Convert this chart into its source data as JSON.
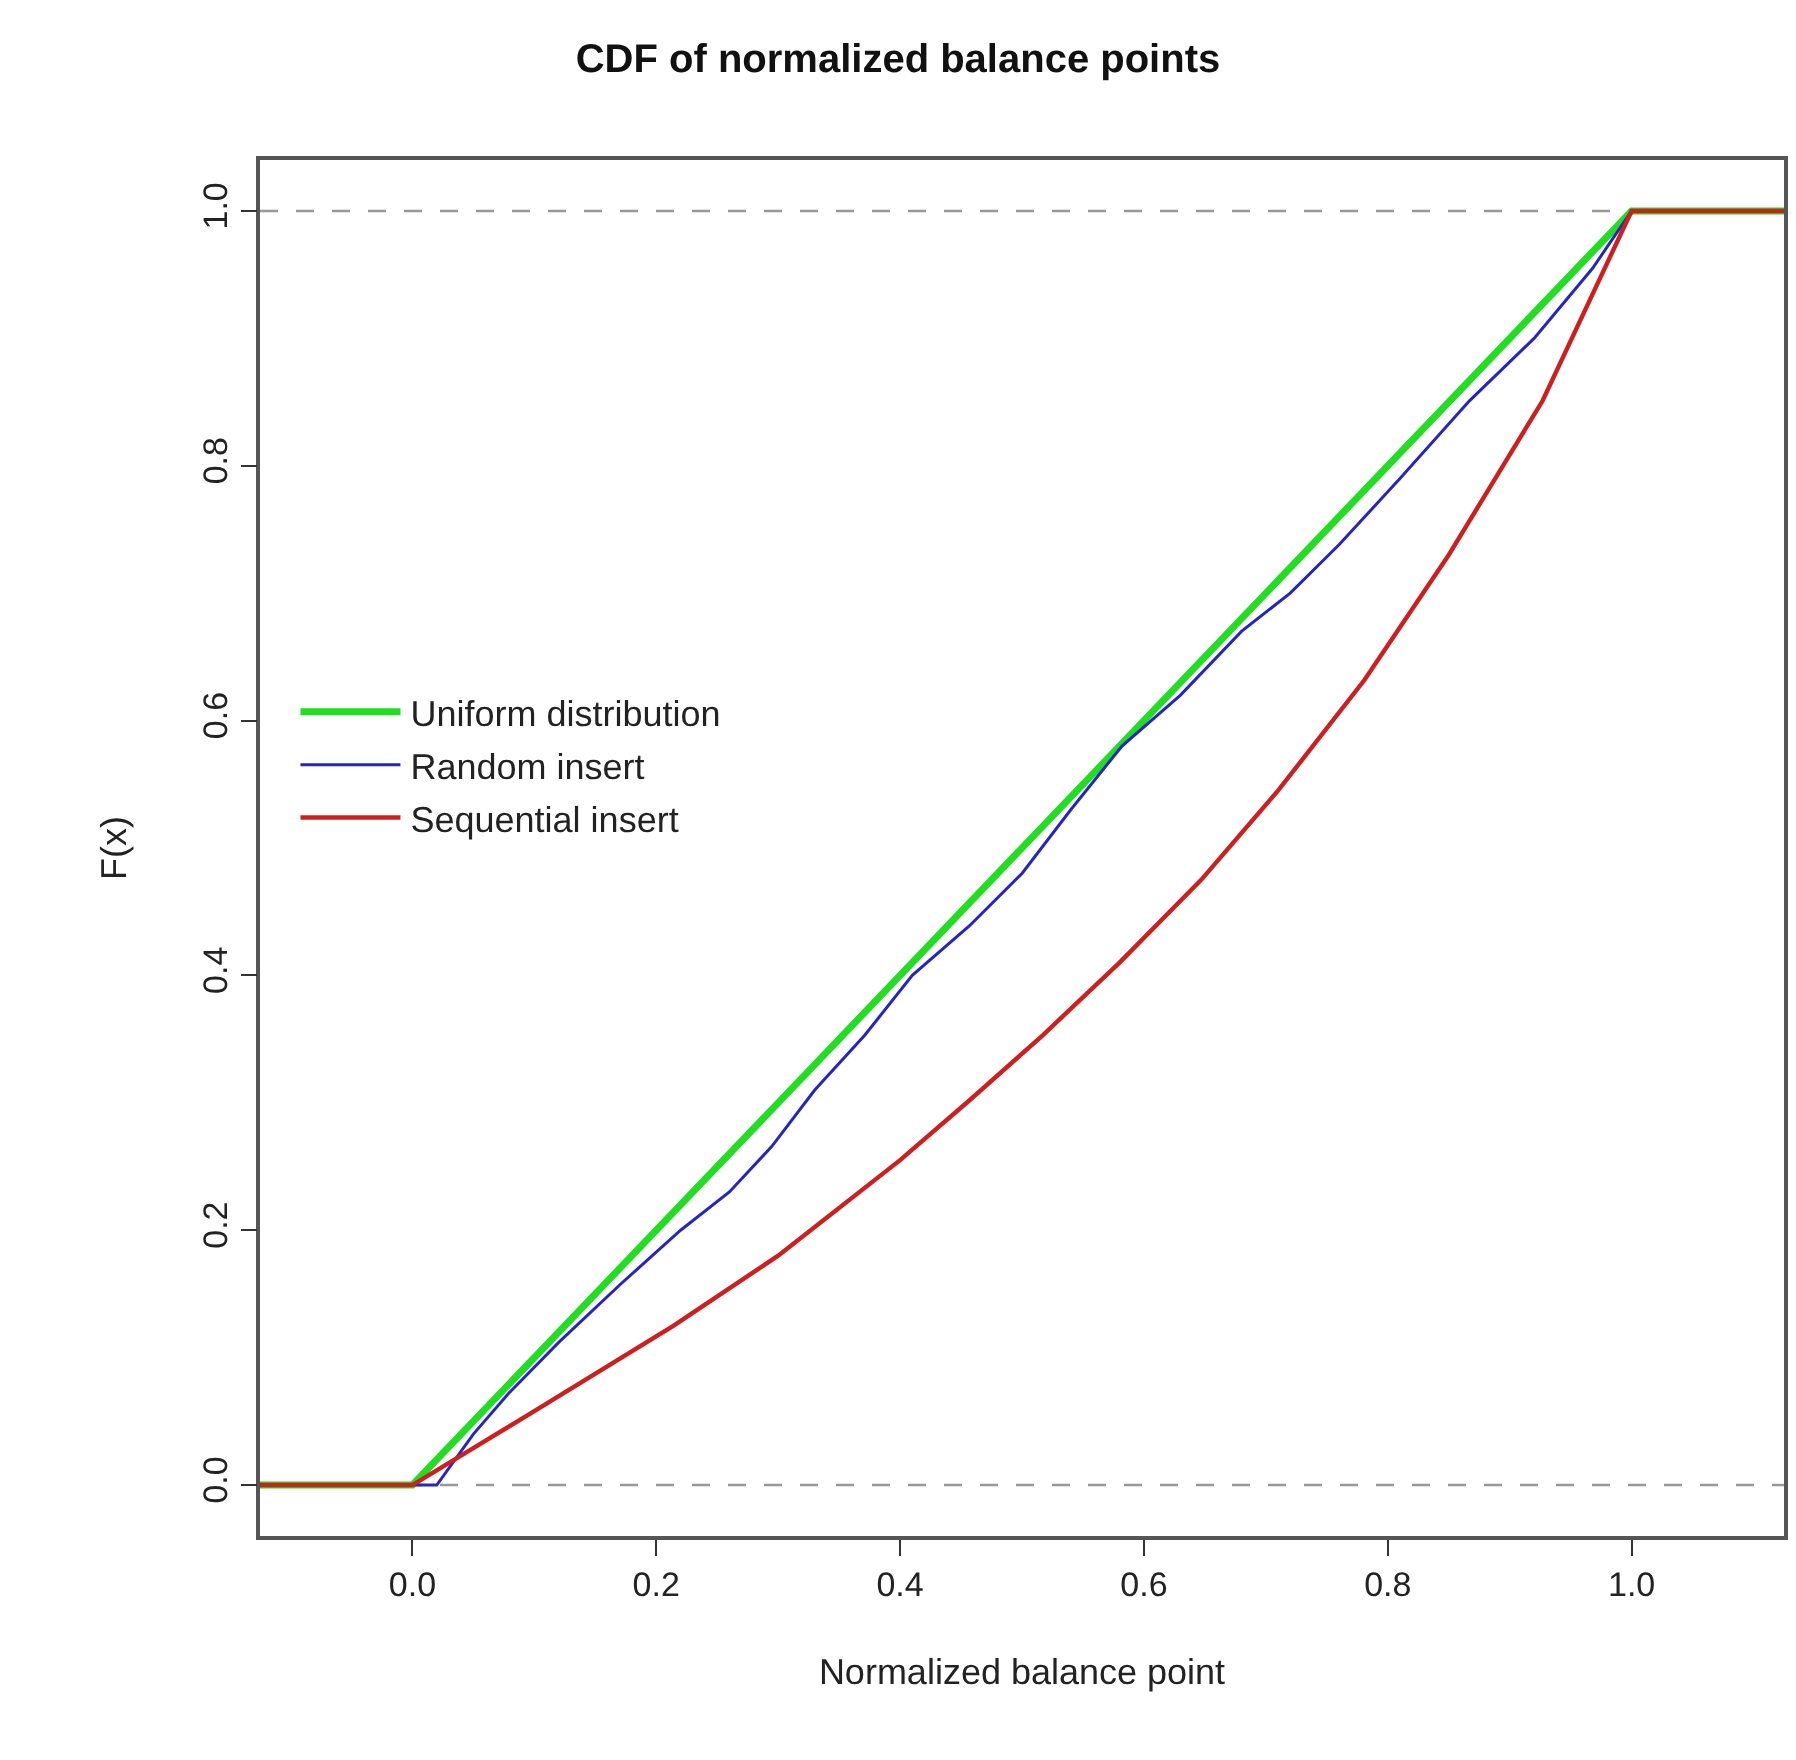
{
  "chart_data": {
    "type": "line",
    "title": "CDF of normalized balance points",
    "xlabel": "Normalized balance point",
    "ylabel": "F(x)",
    "xlim": [
      -0.125,
      1.125
    ],
    "xticks": [
      {
        "value": 0,
        "label": "0.0"
      },
      0.2,
      0.4,
      0.6,
      0.8,
      {
        "value": 1,
        "label": "1.0"
      }
    ],
    "ylim": [
      -0.04,
      1.04
    ],
    "yticks": [
      {
        "value": 0,
        "label": "0.0"
      },
      0.2,
      0.4,
      0.6,
      0.8,
      {
        "value": 1,
        "label": "1.0"
      }
    ],
    "grid": false,
    "legend": "left",
    "marker": "none",
    "line_style": "solid",
    "ref_lines": [
      {
        "axis": "y",
        "value": 0,
        "color": "#999999",
        "line_style": "dashed"
      },
      {
        "axis": "y",
        "value": 1,
        "color": "#999999",
        "line_style": "dashed"
      }
    ],
    "series": [
      {
        "name": "Uniform distribution",
        "color": "#22dd22",
        "x": [
          -0.125,
          0,
          1,
          1.125
        ],
        "values": [
          0,
          0,
          1,
          1
        ]
      },
      {
        "name": "Random insert",
        "color": "#2525c0",
        "x": [
          -0.125,
          0.02,
          0.05,
          0.079,
          0.12,
          0.17,
          0.22,
          0.26,
          0.295,
          0.33,
          0.371,
          0.41,
          0.457,
          0.5,
          0.54,
          0.582,
          0.63,
          0.68,
          0.72,
          0.76,
          0.81,
          0.867,
          0.92,
          0.968,
          1,
          1.125
        ],
        "values": [
          0,
          0,
          0.04,
          0.072,
          0.112,
          0.157,
          0.2,
          0.23,
          0.266,
          0.31,
          0.353,
          0.4,
          0.439,
          0.48,
          0.53,
          0.58,
          0.62,
          0.67,
          0.7,
          0.738,
          0.79,
          0.851,
          0.9,
          0.955,
          1,
          1
        ]
      },
      {
        "name": "Sequential insert",
        "color": "#cc2020",
        "x": [
          -0.125,
          0,
          0.1,
          0.214,
          0.3,
          0.4,
          0.457,
          0.517,
          0.58,
          0.647,
          0.71,
          0.781,
          0.85,
          0.927,
          1,
          1.125
        ],
        "values": [
          0,
          0,
          0.058,
          0.125,
          0.18,
          0.255,
          0.302,
          0.353,
          0.41,
          0.475,
          0.545,
          0.632,
          0.73,
          0.851,
          1,
          1
        ]
      }
    ]
  }
}
